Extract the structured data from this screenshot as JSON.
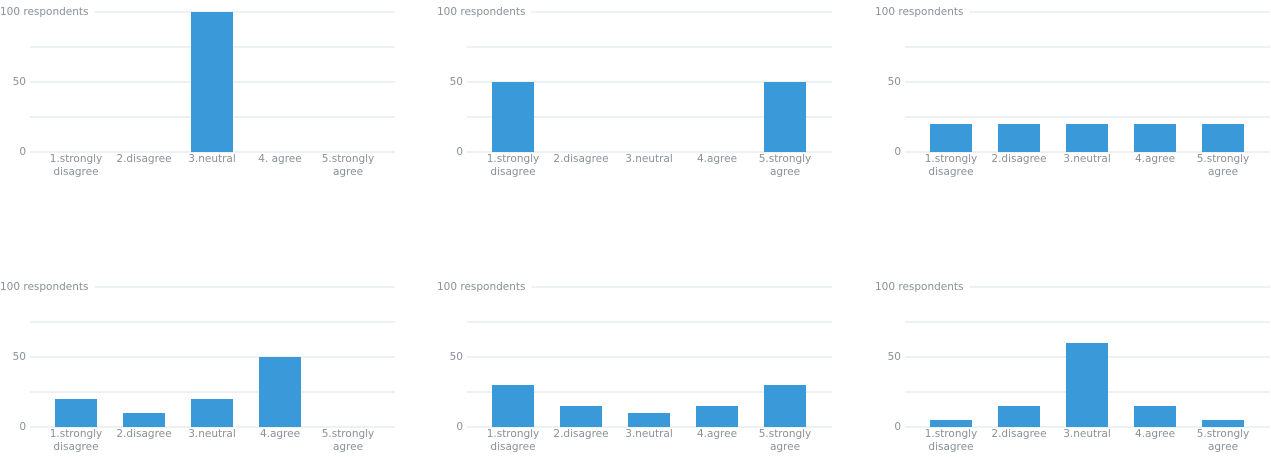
{
  "chart_data": [
    {
      "type": "bar",
      "categories": [
        "1.strongly disagree",
        "2.disagree",
        "3.neutral",
        "4. agree",
        "5.strongly agree"
      ],
      "values": [
        0,
        0,
        100,
        0,
        0
      ],
      "color": "#3a9ad9",
      "ylim": [
        0,
        100
      ],
      "yticks": [
        0,
        50,
        {
          "value": 100,
          "label": "100 respondents"
        }
      ],
      "minor_grid": [
        25,
        75
      ],
      "grid": true
    },
    {
      "type": "bar",
      "categories": [
        "1.strongly disagree",
        "2.disagree",
        "3.neutral",
        "4.agree",
        "5.strongly agree"
      ],
      "values": [
        50,
        0,
        0,
        0,
        50
      ],
      "color": "#3a9ad9",
      "ylim": [
        0,
        100
      ],
      "yticks": [
        0,
        50,
        {
          "value": 100,
          "label": "100 respondents"
        }
      ],
      "minor_grid": [
        25,
        75
      ],
      "grid": true
    },
    {
      "type": "bar",
      "categories": [
        "1.strongly disagree",
        "2.disagree",
        "3.neutral",
        "4.agree",
        "5.strongly agree"
      ],
      "values": [
        20,
        20,
        20,
        20,
        20
      ],
      "color": "#3a9ad9",
      "ylim": [
        0,
        100
      ],
      "yticks": [
        0,
        50,
        {
          "value": 100,
          "label": "100 respondents"
        }
      ],
      "minor_grid": [
        25,
        75
      ],
      "grid": true
    },
    {
      "type": "bar",
      "categories": [
        "1.strongly disagree",
        "2.disagree",
        "3.neutral",
        "4.agree",
        "5.strongly agree"
      ],
      "values": [
        20,
        10,
        20,
        50,
        0
      ],
      "color": "#3a9ad9",
      "ylim": [
        0,
        100
      ],
      "yticks": [
        0,
        50,
        {
          "value": 100,
          "label": "100 respondents"
        }
      ],
      "minor_grid": [
        25,
        75
      ],
      "grid": true
    },
    {
      "type": "bar",
      "categories": [
        "1.strongly disagree",
        "2.disagree",
        "3.neutral",
        "4.agree",
        "5.strongly agree"
      ],
      "values": [
        30,
        15,
        10,
        15,
        30
      ],
      "color": "#3a9ad9",
      "ylim": [
        0,
        100
      ],
      "yticks": [
        0,
        50,
        {
          "value": 100,
          "label": "100 respondents"
        }
      ],
      "minor_grid": [
        25,
        75
      ],
      "grid": true
    },
    {
      "type": "bar",
      "categories": [
        "1.strongly disagree",
        "2.disagree",
        "3.neutral",
        "4.agree",
        "5.strongly agree"
      ],
      "values": [
        5,
        15,
        60,
        15,
        5
      ],
      "color": "#3a9ad9",
      "ylim": [
        0,
        100
      ],
      "yticks": [
        0,
        50,
        {
          "value": 100,
          "label": "100 respondents"
        }
      ],
      "minor_grid": [
        25,
        75
      ],
      "grid": true
    }
  ]
}
